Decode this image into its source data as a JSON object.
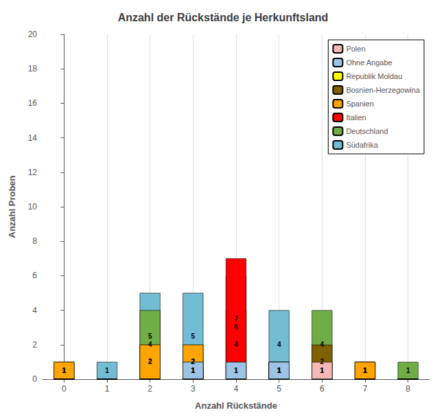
{
  "chart_data": {
    "type": "bar",
    "title": "Anzahl der Rückstände je Herkunftsland",
    "xlabel": "Anzahl Rückstände",
    "ylabel": "Anzahl Proben",
    "x": [
      0,
      1,
      2,
      3,
      4,
      5,
      6,
      7,
      8
    ],
    "xlim": [
      -0.5,
      8.5
    ],
    "xticks": [
      0,
      1,
      2,
      3,
      4,
      5,
      6,
      7,
      8
    ],
    "ylim": [
      0,
      20
    ],
    "yticks": [
      0,
      2,
      4,
      6,
      8,
      10,
      12,
      14,
      16,
      18,
      20
    ],
    "stacked": true,
    "data_labels": true,
    "grid": "x",
    "legend": "upper right",
    "series": [
      {
        "name": "Südafrika",
        "color": "#72bcd4",
        "values": [
          1,
          1,
          5,
          5,
          6,
          4,
          1,
          1,
          0
        ]
      },
      {
        "name": "Deutschland",
        "color": "#70ad47",
        "values": [
          0,
          0,
          4,
          2,
          4,
          1,
          4,
          1,
          1
        ]
      },
      {
        "name": "Italien",
        "color": "#ff0000",
        "values": [
          1,
          0,
          2,
          1,
          7,
          1,
          0,
          1,
          0
        ]
      },
      {
        "name": "Spanien",
        "color": "#ffa500",
        "values": [
          1,
          0,
          2,
          2,
          0,
          1,
          0,
          1,
          0
        ]
      },
      {
        "name": "Bosnien-Herzegowina",
        "color": "#806000",
        "values": [
          0,
          0,
          0,
          0,
          0,
          0,
          2,
          0,
          0
        ]
      },
      {
        "name": "Republik Moldau",
        "color": "#ffff00",
        "values": [
          0,
          0,
          0,
          1,
          1,
          1,
          0,
          0,
          0
        ]
      },
      {
        "name": "Ohne Angabe",
        "color": "#9dc3e6",
        "values": [
          0,
          0,
          0,
          1,
          1,
          1,
          0,
          0,
          0
        ]
      },
      {
        "name": "Polen",
        "color": "#f4b8b8",
        "values": [
          0,
          0,
          0,
          0,
          0,
          0,
          1,
          0,
          0
        ]
      }
    ]
  }
}
